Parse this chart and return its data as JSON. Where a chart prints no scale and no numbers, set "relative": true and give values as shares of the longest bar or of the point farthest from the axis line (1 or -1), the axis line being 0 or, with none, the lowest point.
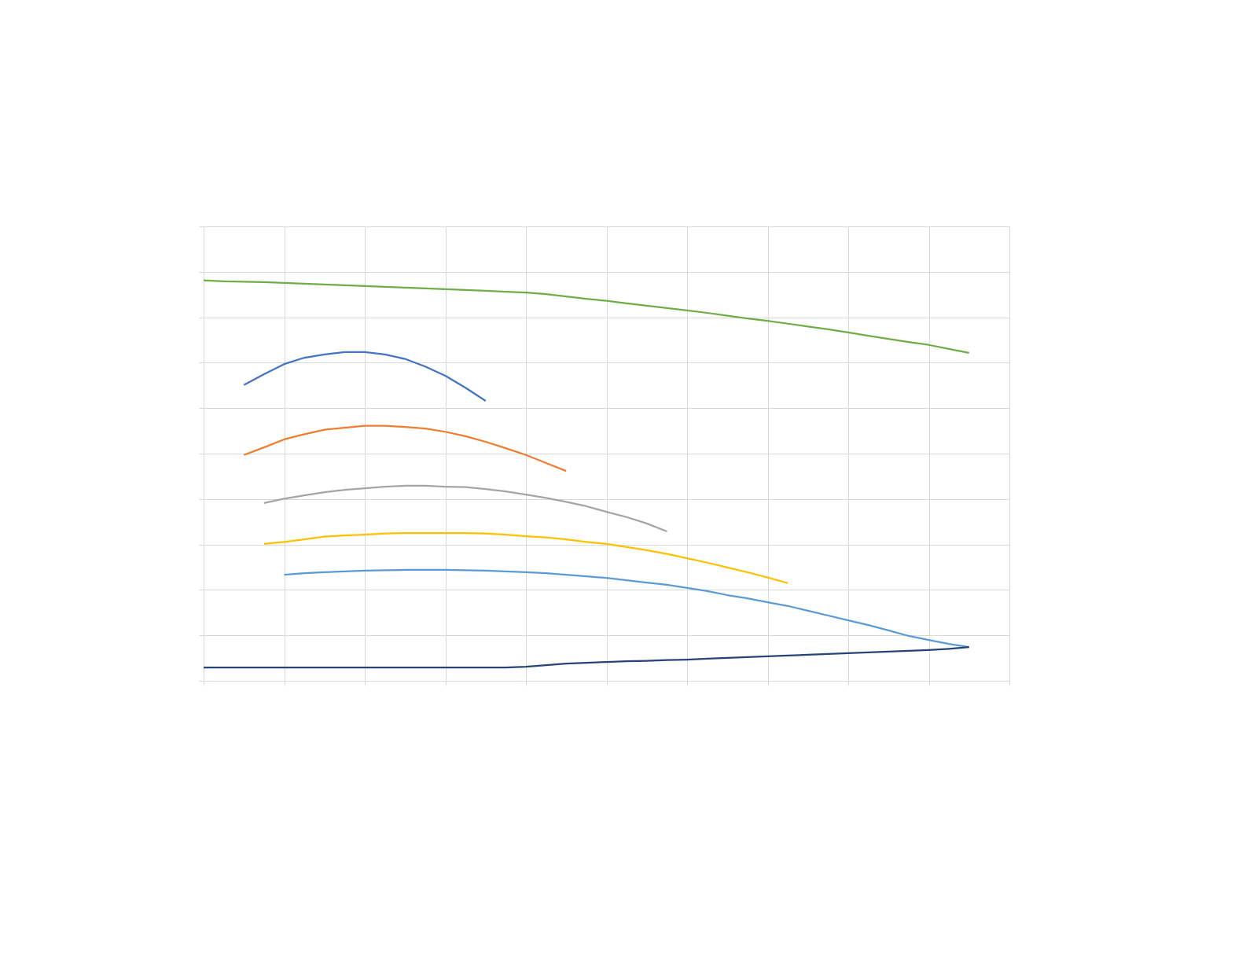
{
  "chart_data": {
    "type": "line",
    "relative": true,
    "grid": true,
    "line_style": "solid",
    "marker": "none",
    "categories": [
      null,
      null,
      null,
      null,
      null,
      null,
      null,
      null,
      null,
      null,
      null,
      null,
      null,
      null,
      null,
      null,
      null,
      null,
      null,
      null,
      null,
      null,
      null,
      null,
      null,
      null,
      null,
      null,
      null,
      null,
      null,
      null,
      null,
      null,
      null,
      null,
      null,
      null,
      null,
      null,
      null
    ],
    "series": [
      {
        "color": "#4472c4",
        "values": [
          null,
          null,
          0.739,
          0.766,
          0.791,
          0.807,
          0.815,
          0.821,
          0.821,
          0.815,
          0.804,
          0.785,
          0.762,
          0.732,
          0.699,
          null,
          null,
          null,
          null,
          null,
          null,
          null,
          null,
          null,
          null,
          null,
          null,
          null,
          null,
          null,
          null,
          null,
          null,
          null,
          null,
          null,
          null,
          null,
          null,
          null,
          null
        ]
      },
      {
        "color": "#ed7d31",
        "values": [
          null,
          null,
          0.564,
          0.583,
          0.603,
          0.616,
          0.627,
          0.632,
          0.637,
          0.637,
          0.634,
          0.63,
          0.622,
          0.611,
          0.597,
          0.581,
          0.564,
          0.544,
          0.524,
          null,
          null,
          null,
          null,
          null,
          null,
          null,
          null,
          null,
          null,
          null,
          null,
          null,
          null,
          null,
          null,
          null,
          null,
          null,
          null,
          null,
          null
        ]
      },
      {
        "color": "#a5a5a5",
        "values": [
          null,
          null,
          null,
          0.444,
          0.455,
          0.463,
          0.471,
          0.477,
          0.481,
          0.485,
          0.487,
          0.487,
          0.485,
          0.484,
          0.479,
          0.473,
          0.465,
          0.457,
          0.447,
          0.436,
          0.422,
          0.409,
          0.393,
          0.373,
          null,
          null,
          null,
          null,
          null,
          null,
          null,
          null,
          null,
          null,
          null,
          null,
          null,
          null,
          null,
          null,
          null
        ]
      },
      {
        "color": "#ffc000",
        "values": [
          null,
          null,
          null,
          0.342,
          0.347,
          0.353,
          0.36,
          0.363,
          0.365,
          0.368,
          0.369,
          0.369,
          0.369,
          0.369,
          0.368,
          0.365,
          0.361,
          0.358,
          0.353,
          0.347,
          0.342,
          0.334,
          0.326,
          0.317,
          0.306,
          0.295,
          0.283,
          0.271,
          0.258,
          0.244,
          null,
          null,
          null,
          null,
          null,
          null,
          null,
          null,
          null,
          null,
          null
        ]
      },
      {
        "color": "#5b9bd5",
        "values": [
          null,
          null,
          null,
          null,
          0.265,
          0.269,
          0.271,
          0.273,
          0.275,
          0.276,
          0.277,
          0.277,
          0.277,
          0.276,
          0.275,
          0.273,
          0.271,
          0.269,
          0.265,
          0.261,
          0.257,
          0.251,
          0.245,
          0.24,
          0.232,
          0.224,
          0.214,
          0.206,
          0.196,
          0.187,
          0.175,
          0.163,
          0.151,
          0.139,
          0.126,
          0.112,
          0.102,
          0.092,
          0.084,
          null,
          null
        ]
      },
      {
        "color": "#70ad47",
        "values": [
          1,
          0.998,
          0.997,
          0.996,
          0.994,
          0.992,
          0.99,
          0.988,
          0.986,
          0.984,
          0.982,
          0.98,
          0.978,
          0.976,
          0.974,
          0.972,
          0.97,
          0.966,
          0.96,
          0.954,
          0.949,
          0.943,
          0.937,
          0.931,
          0.925,
          0.919,
          0.912,
          0.905,
          0.899,
          0.892,
          0.885,
          0.878,
          0.87,
          0.862,
          0.854,
          0.846,
          0.839,
          0.829,
          0.819,
          null,
          null
        ]
      },
      {
        "color": "#264478",
        "values": [
          0.033,
          0.033,
          0.033,
          0.033,
          0.033,
          0.033,
          0.033,
          0.033,
          0.033,
          0.033,
          0.033,
          0.033,
          0.033,
          0.033,
          0.033,
          0.033,
          0.035,
          0.039,
          0.043,
          0.045,
          0.047,
          0.049,
          0.05,
          0.052,
          0.053,
          0.055,
          0.057,
          0.059,
          0.061,
          0.063,
          0.065,
          0.067,
          0.069,
          0.071,
          0.073,
          0.075,
          0.077,
          0.08,
          0.084,
          null,
          null
        ]
      }
    ]
  }
}
